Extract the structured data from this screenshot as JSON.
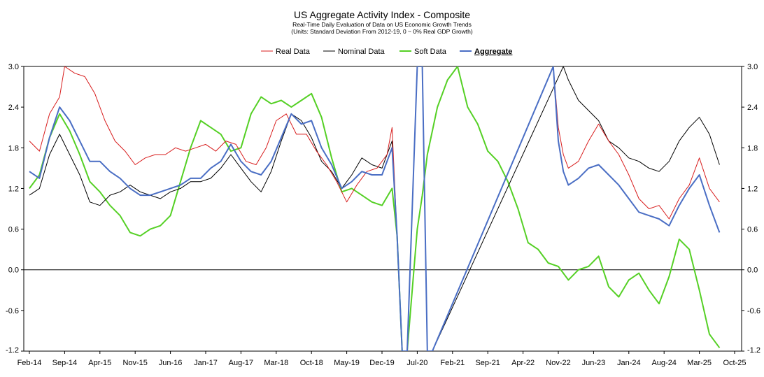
{
  "chart_data": {
    "type": "line",
    "title": "US Aggregate Activity Index - Composite",
    "subtitle": [
      "Real-Time Daily Evaluation of Data on US Economic Growth Trends",
      "(Units: Standard Deviation From 2012-19, 0 ~ 0% Real GDP Growth)"
    ],
    "xlabel": "",
    "ylabel": "",
    "ylim": [
      -1.2,
      3.0
    ],
    "y_ticks": [
      "3.0",
      "2.4",
      "1.8",
      "1.2",
      "0.6",
      "0.0",
      "-0.6",
      "-1.2"
    ],
    "x_ticks": [
      "Feb-14",
      "Sep-14",
      "Apr-15",
      "Nov-15",
      "Jun-16",
      "Jan-17",
      "Aug-17",
      "Mar-18",
      "Oct-18",
      "May-19",
      "Dec-19",
      "Jul-20",
      "Feb-21",
      "Sep-21",
      "Apr-22",
      "Nov-22",
      "Jun-23",
      "Jan-24",
      "Aug-24",
      "Mar-25",
      "Oct-25"
    ],
    "xlim": [
      "2014-02",
      "2025-10"
    ],
    "grid": false,
    "legend_position": "top-center",
    "series": [
      {
        "name": "Real Data",
        "color": "#d81e1e",
        "x": [
          "2014-02",
          "2014-04",
          "2014-06",
          "2014-08",
          "2014-09",
          "2014-11",
          "2015-01",
          "2015-03",
          "2015-05",
          "2015-07",
          "2015-09",
          "2015-11",
          "2016-01",
          "2016-03",
          "2016-05",
          "2016-07",
          "2016-09",
          "2016-11",
          "2017-01",
          "2017-03",
          "2017-05",
          "2017-07",
          "2017-09",
          "2017-11",
          "2018-01",
          "2018-03",
          "2018-05",
          "2018-07",
          "2018-09",
          "2018-11",
          "2019-01",
          "2019-03",
          "2019-05",
          "2019-07",
          "2019-09",
          "2019-11",
          "2020-01",
          "2020-02",
          "2020-03",
          "2020-04",
          "2020-05",
          "2020-07",
          "2020-08",
          "2020-09",
          "2020-10",
          "2022-10",
          "2022-11",
          "2022-12",
          "2023-01",
          "2023-03",
          "2023-05",
          "2023-07",
          "2023-09",
          "2023-11",
          "2024-01",
          "2024-03",
          "2024-05",
          "2024-07",
          "2024-09",
          "2024-11",
          "2025-01",
          "2025-03",
          "2025-05",
          "2025-07"
        ],
        "y": [
          1.9,
          1.75,
          2.3,
          2.55,
          3.0,
          2.9,
          2.85,
          2.6,
          2.2,
          1.9,
          1.75,
          1.55,
          1.65,
          1.7,
          1.7,
          1.8,
          1.75,
          1.8,
          1.85,
          1.75,
          1.9,
          1.85,
          1.6,
          1.55,
          1.8,
          2.2,
          2.3,
          2.0,
          2.0,
          1.75,
          1.55,
          1.3,
          1.0,
          1.25,
          1.45,
          1.5,
          1.7,
          2.1,
          0.5,
          -1.2,
          -1.2,
          3.0,
          3.0,
          -1.2,
          -1.2,
          3.0,
          2.1,
          1.7,
          1.5,
          1.6,
          1.9,
          2.15,
          1.9,
          1.7,
          1.4,
          1.05,
          0.9,
          0.95,
          0.75,
          1.05,
          1.25,
          1.65,
          1.2,
          1.0
        ]
      },
      {
        "name": "Nominal Data",
        "color": "#000000",
        "x": [
          "2014-02",
          "2014-04",
          "2014-06",
          "2014-08",
          "2014-10",
          "2014-12",
          "2015-02",
          "2015-04",
          "2015-06",
          "2015-08",
          "2015-10",
          "2015-12",
          "2016-02",
          "2016-04",
          "2016-06",
          "2016-08",
          "2016-10",
          "2016-12",
          "2017-02",
          "2017-04",
          "2017-06",
          "2017-08",
          "2017-10",
          "2017-12",
          "2018-02",
          "2018-04",
          "2018-06",
          "2018-08",
          "2018-10",
          "2018-12",
          "2019-02",
          "2019-04",
          "2019-06",
          "2019-08",
          "2019-10",
          "2019-12",
          "2020-02",
          "2020-03",
          "2020-04",
          "2020-05",
          "2020-07",
          "2020-08",
          "2020-09",
          "2020-10",
          "2022-12",
          "2023-01",
          "2023-03",
          "2023-05",
          "2023-07",
          "2023-09",
          "2023-11",
          "2024-01",
          "2024-03",
          "2024-05",
          "2024-07",
          "2024-09",
          "2024-11",
          "2025-01",
          "2025-03",
          "2025-05",
          "2025-07"
        ],
        "y": [
          1.1,
          1.2,
          1.7,
          2.0,
          1.7,
          1.4,
          1.0,
          0.95,
          1.1,
          1.15,
          1.25,
          1.15,
          1.1,
          1.05,
          1.15,
          1.2,
          1.3,
          1.3,
          1.35,
          1.5,
          1.7,
          1.5,
          1.3,
          1.15,
          1.45,
          1.9,
          2.3,
          2.2,
          1.95,
          1.6,
          1.45,
          1.2,
          1.4,
          1.65,
          1.55,
          1.5,
          1.9,
          0.5,
          -1.2,
          -1.2,
          3.0,
          3.0,
          -1.2,
          -1.2,
          3.0,
          2.8,
          2.5,
          2.35,
          2.2,
          1.9,
          1.8,
          1.65,
          1.6,
          1.5,
          1.45,
          1.6,
          1.9,
          2.1,
          2.25,
          2.0,
          1.55
        ]
      },
      {
        "name": "Soft Data",
        "color": "#55d025",
        "x": [
          "2014-02",
          "2014-04",
          "2014-06",
          "2014-08",
          "2014-10",
          "2014-12",
          "2015-02",
          "2015-04",
          "2015-06",
          "2015-08",
          "2015-10",
          "2015-12",
          "2016-02",
          "2016-04",
          "2016-06",
          "2016-08",
          "2016-10",
          "2016-12",
          "2017-02",
          "2017-04",
          "2017-06",
          "2017-08",
          "2017-10",
          "2017-12",
          "2018-02",
          "2018-04",
          "2018-06",
          "2018-08",
          "2018-10",
          "2018-12",
          "2019-02",
          "2019-04",
          "2019-06",
          "2019-08",
          "2019-10",
          "2019-12",
          "2020-02",
          "2020-03",
          "2020-04",
          "2020-05",
          "2020-07",
          "2020-08",
          "2020-09",
          "2020-11",
          "2021-01",
          "2021-03",
          "2021-05",
          "2021-07",
          "2021-09",
          "2021-11",
          "2022-01",
          "2022-03",
          "2022-05",
          "2022-07",
          "2022-09",
          "2022-11",
          "2023-01",
          "2023-03",
          "2023-05",
          "2023-07",
          "2023-09",
          "2023-11",
          "2024-01",
          "2024-03",
          "2024-05",
          "2024-07",
          "2024-09",
          "2024-11",
          "2025-01",
          "2025-03",
          "2025-05",
          "2025-07"
        ],
        "y": [
          1.2,
          1.4,
          1.95,
          2.3,
          2.05,
          1.7,
          1.3,
          1.15,
          0.95,
          0.8,
          0.55,
          0.5,
          0.6,
          0.65,
          0.8,
          1.3,
          1.8,
          2.2,
          2.1,
          2.0,
          1.75,
          1.8,
          2.3,
          2.55,
          2.45,
          2.5,
          2.4,
          2.5,
          2.6,
          2.25,
          1.65,
          1.15,
          1.2,
          1.1,
          1.0,
          0.95,
          1.2,
          0.5,
          -1.2,
          -1.2,
          0.6,
          1.1,
          1.7,
          2.4,
          2.8,
          3.0,
          2.4,
          2.15,
          1.75,
          1.6,
          1.3,
          0.9,
          0.4,
          0.3,
          0.1,
          0.05,
          -0.15,
          0.0,
          0.05,
          0.2,
          -0.25,
          -0.4,
          -0.15,
          -0.05,
          -0.3,
          -0.5,
          -0.1,
          0.45,
          0.3,
          -0.3,
          -0.95,
          -1.15
        ]
      },
      {
        "name": "Aggregate",
        "color": "#4a6ec4",
        "x": [
          "2014-02",
          "2014-04",
          "2014-06",
          "2014-08",
          "2014-10",
          "2014-12",
          "2015-02",
          "2015-04",
          "2015-06",
          "2015-08",
          "2015-10",
          "2015-12",
          "2016-02",
          "2016-04",
          "2016-06",
          "2016-08",
          "2016-10",
          "2016-12",
          "2017-02",
          "2017-04",
          "2017-06",
          "2017-08",
          "2017-10",
          "2017-12",
          "2018-02",
          "2018-04",
          "2018-06",
          "2018-08",
          "2018-10",
          "2018-12",
          "2019-02",
          "2019-04",
          "2019-06",
          "2019-08",
          "2019-10",
          "2019-12",
          "2020-02",
          "2020-03",
          "2020-04",
          "2020-05",
          "2020-07",
          "2020-08",
          "2020-09",
          "2020-10",
          "2022-10",
          "2022-11",
          "2022-12",
          "2023-01",
          "2023-03",
          "2023-05",
          "2023-07",
          "2023-09",
          "2023-11",
          "2024-01",
          "2024-03",
          "2024-05",
          "2024-07",
          "2024-09",
          "2024-11",
          "2025-01",
          "2025-03",
          "2025-05",
          "2025-07"
        ],
        "y": [
          1.45,
          1.35,
          1.95,
          2.4,
          2.2,
          1.9,
          1.6,
          1.6,
          1.45,
          1.35,
          1.2,
          1.1,
          1.1,
          1.15,
          1.2,
          1.25,
          1.35,
          1.35,
          1.5,
          1.6,
          1.85,
          1.6,
          1.45,
          1.4,
          1.6,
          1.95,
          2.3,
          2.15,
          2.2,
          1.8,
          1.55,
          1.2,
          1.3,
          1.45,
          1.4,
          1.4,
          1.8,
          0.5,
          -1.2,
          -1.2,
          3.0,
          3.0,
          -1.2,
          -1.2,
          3.0,
          1.9,
          1.45,
          1.25,
          1.35,
          1.5,
          1.55,
          1.4,
          1.25,
          1.05,
          0.85,
          0.8,
          0.75,
          0.65,
          0.95,
          1.2,
          1.4,
          0.95,
          0.55
        ]
      }
    ]
  }
}
